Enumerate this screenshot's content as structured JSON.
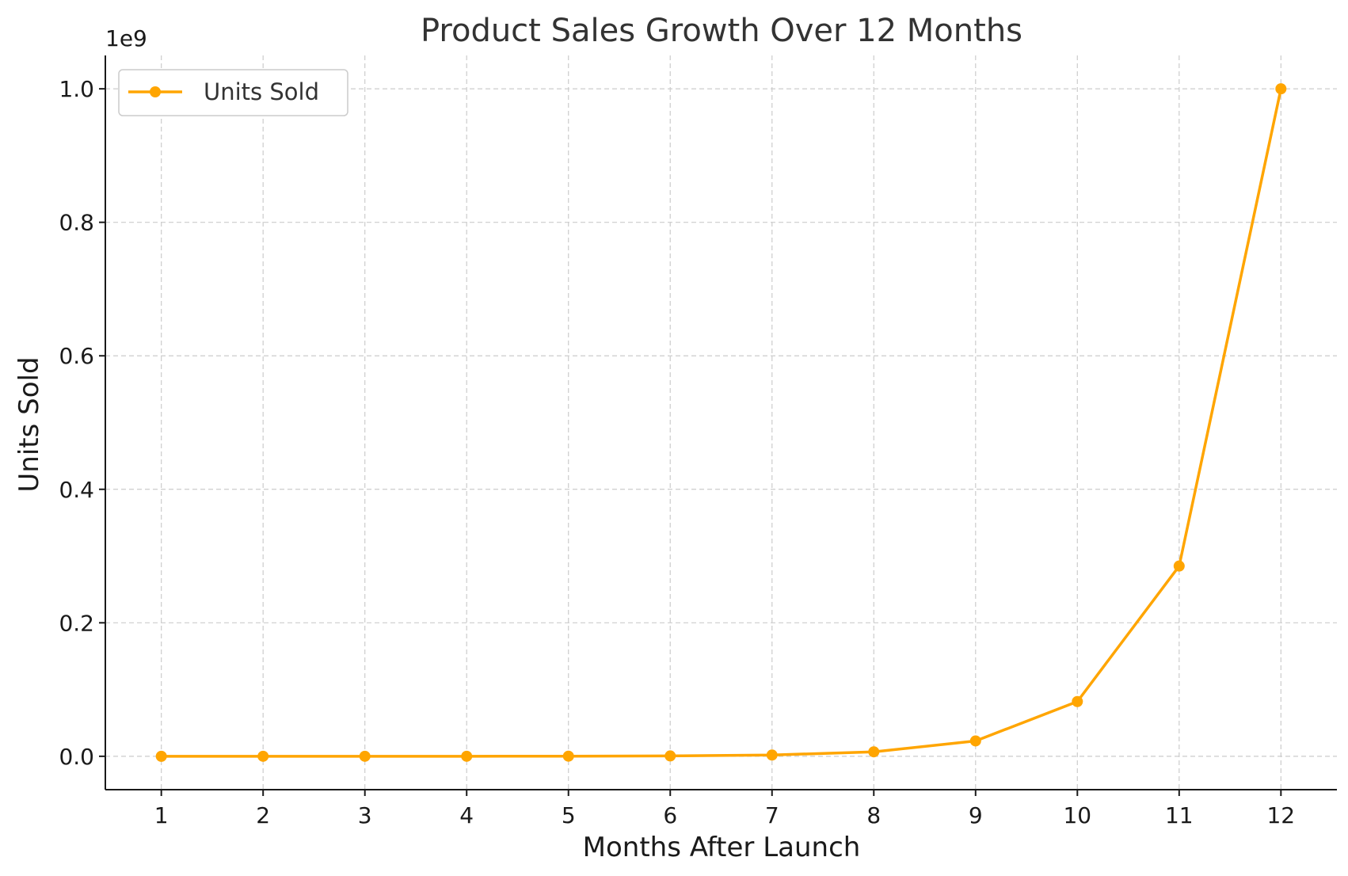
{
  "chart_data": {
    "type": "line",
    "title": "Product Sales Growth Over 12 Months",
    "xlabel": "Months After Launch",
    "ylabel": "Units Sold",
    "y_offset_text": "1e9",
    "x": [
      1,
      2,
      3,
      4,
      5,
      6,
      7,
      8,
      9,
      10,
      11,
      12
    ],
    "xlim": [
      0.45,
      12.55
    ],
    "ylim": [
      -50000000,
      1050000000
    ],
    "x_ticks": [
      1,
      2,
      3,
      4,
      5,
      6,
      7,
      8,
      9,
      10,
      11,
      12
    ],
    "y_ticks": [
      0,
      200000000,
      400000000,
      600000000,
      800000000,
      1000000000
    ],
    "y_tick_labels": [
      "0.0",
      "0.2",
      "0.4",
      "0.6",
      "0.8",
      "1.0"
    ],
    "grid": true,
    "legend_position": "top-left",
    "series": [
      {
        "name": "Units Sold",
        "color": "#FFA500",
        "marker": "circle",
        "values": [
          1000,
          3500,
          12000,
          42000,
          150000,
          530000,
          1900000,
          6700000,
          23000000,
          82000000,
          285000000,
          1000000000
        ]
      }
    ]
  }
}
